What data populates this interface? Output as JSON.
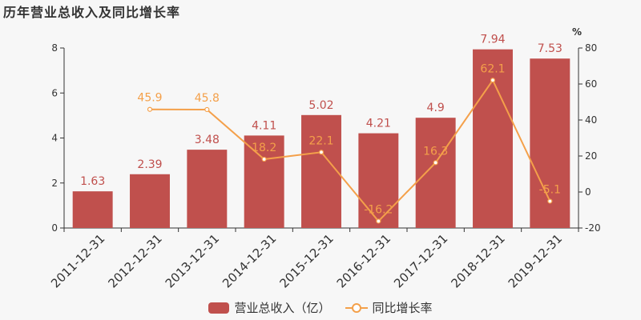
{
  "chart_data": {
    "type": "bar",
    "title": "历年营业总收入及同比增长率",
    "categories": [
      "2011-12-31",
      "2012-12-31",
      "2013-12-31",
      "2014-12-31",
      "2015-12-31",
      "2016-12-31",
      "2017-12-31",
      "2018-12-31",
      "2019-12-31"
    ],
    "series": [
      {
        "name": "营业总收入（亿）",
        "type": "bar",
        "axis": "left",
        "color": "#c0504d",
        "values": [
          1.63,
          2.39,
          3.48,
          4.11,
          5.02,
          4.21,
          4.9,
          7.94,
          7.53
        ],
        "labels": [
          "1.63",
          "2.39",
          "3.48",
          "4.11",
          "5.02",
          "4.21",
          "4.9",
          "7.94",
          "7.53"
        ]
      },
      {
        "name": "同比增长率",
        "type": "line",
        "axis": "right",
        "color": "#f4a04a",
        "values": [
          null,
          45.9,
          45.8,
          18.2,
          22.1,
          -16.2,
          16.3,
          62.1,
          -5.1
        ],
        "labels": [
          "",
          "45.9",
          "45.8",
          "18.2",
          "22.1",
          "-16.2",
          "16.3",
          "62.1",
          "-5.1"
        ]
      }
    ],
    "ylim_left": [
      0,
      8
    ],
    "yticks_left": [
      0,
      2,
      4,
      6,
      8
    ],
    "ylim_right": [
      -20,
      80
    ],
    "yticks_right": [
      -20,
      0,
      20,
      40,
      60,
      80
    ],
    "ylabel_right": "%",
    "legend_position": "bottom-center",
    "grid": false
  }
}
